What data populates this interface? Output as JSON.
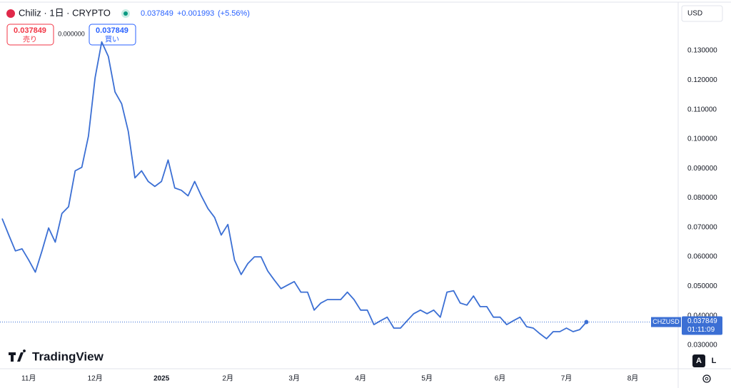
{
  "chart_data": {
    "type": "line",
    "symbol": "Chiliz · 1日 · CRYPTO",
    "header_price": "0.037849",
    "header_change": "+0.001993",
    "header_change_pct": "(+5.56%)",
    "sell_price": "0.037849",
    "sell_label": "売り",
    "spread": "0.000000",
    "buy_price": "0.037849",
    "buy_label": "買い",
    "currency": "USD",
    "ticker": "CHZUSD",
    "last_price": 0.037849,
    "countdown": "01:11:09",
    "brand": "TradingView",
    "scale_buttons": [
      "A",
      "L"
    ],
    "categories": [
      null,
      null,
      null,
      null,
      "11月",
      null,
      null,
      null,
      null,
      null,
      null,
      null,
      null,
      null,
      "12月",
      null,
      null,
      null,
      null,
      null,
      null,
      null,
      null,
      null,
      "2025",
      null,
      null,
      null,
      null,
      null,
      null,
      null,
      null,
      null,
      "2月",
      null,
      null,
      null,
      null,
      null,
      null,
      null,
      null,
      null,
      "3月",
      null,
      null,
      null,
      null,
      null,
      null,
      null,
      null,
      null,
      "4月",
      null,
      null,
      null,
      null,
      null,
      null,
      null,
      null,
      null,
      "5月",
      null,
      null,
      null,
      null,
      null,
      null,
      null,
      null,
      null,
      null,
      "6月",
      null,
      null,
      null,
      null,
      null,
      null,
      null,
      null,
      null,
      "7月",
      null,
      null,
      null,
      null,
      null,
      null,
      null,
      null,
      null,
      "8月",
      null,
      null,
      null,
      null,
      null,
      null
    ],
    "series": [
      {
        "name": "CHZUSD",
        "color": "#3b6fd4",
        "values": [
          0.073,
          0.0674,
          0.062,
          0.0627,
          0.0589,
          0.0548,
          0.062,
          0.0698,
          0.065,
          0.0747,
          0.077,
          0.0892,
          0.0904,
          0.101,
          0.1208,
          0.133,
          0.128,
          0.116,
          0.112,
          0.1026,
          0.0868,
          0.0892,
          0.0856,
          0.0839,
          0.0856,
          0.0929,
          0.0834,
          0.0826,
          0.0807,
          0.0856,
          0.0807,
          0.0764,
          0.0734,
          0.0674,
          0.071,
          0.0589,
          0.054,
          0.0577,
          0.06,
          0.06,
          0.0552,
          0.0521,
          0.0492,
          0.0504,
          0.0516,
          0.048,
          0.048,
          0.0419,
          0.0443,
          0.0455,
          0.0455,
          0.0455,
          0.048,
          0.0455,
          0.0419,
          0.0419,
          0.037,
          0.0383,
          0.0395,
          0.0358,
          0.0358,
          0.0383,
          0.0407,
          0.0419,
          0.0407,
          0.0419,
          0.0395,
          0.048,
          0.0485,
          0.0443,
          0.0436,
          0.0467,
          0.0431,
          0.0431,
          0.0395,
          0.0395,
          0.037,
          0.0383,
          0.0395,
          0.0363,
          0.0358,
          0.0339,
          0.0322,
          0.0346,
          0.0346,
          0.0358,
          0.0346,
          0.0353,
          0.037849,
          null,
          null,
          null,
          null,
          null,
          null,
          null,
          null,
          null,
          null,
          null,
          null,
          null
        ]
      }
    ],
    "ylim": [
      0.022,
      0.146
    ],
    "yticks": [
      {
        "value": 0.03,
        "label": "0.030000"
      },
      {
        "value": 0.04,
        "label": "0.040000"
      },
      {
        "value": 0.05,
        "label": "0.050000"
      },
      {
        "value": 0.06,
        "label": "0.060000"
      },
      {
        "value": 0.07,
        "label": "0.070000"
      },
      {
        "value": 0.08,
        "label": "0.080000"
      },
      {
        "value": 0.09,
        "label": "0.090000"
      },
      {
        "value": 0.1,
        "label": "0.100000"
      },
      {
        "value": 0.11,
        "label": "0.110000"
      },
      {
        "value": 0.12,
        "label": "0.120000"
      },
      {
        "value": 0.13,
        "label": "0.130000"
      }
    ],
    "grid": false
  }
}
